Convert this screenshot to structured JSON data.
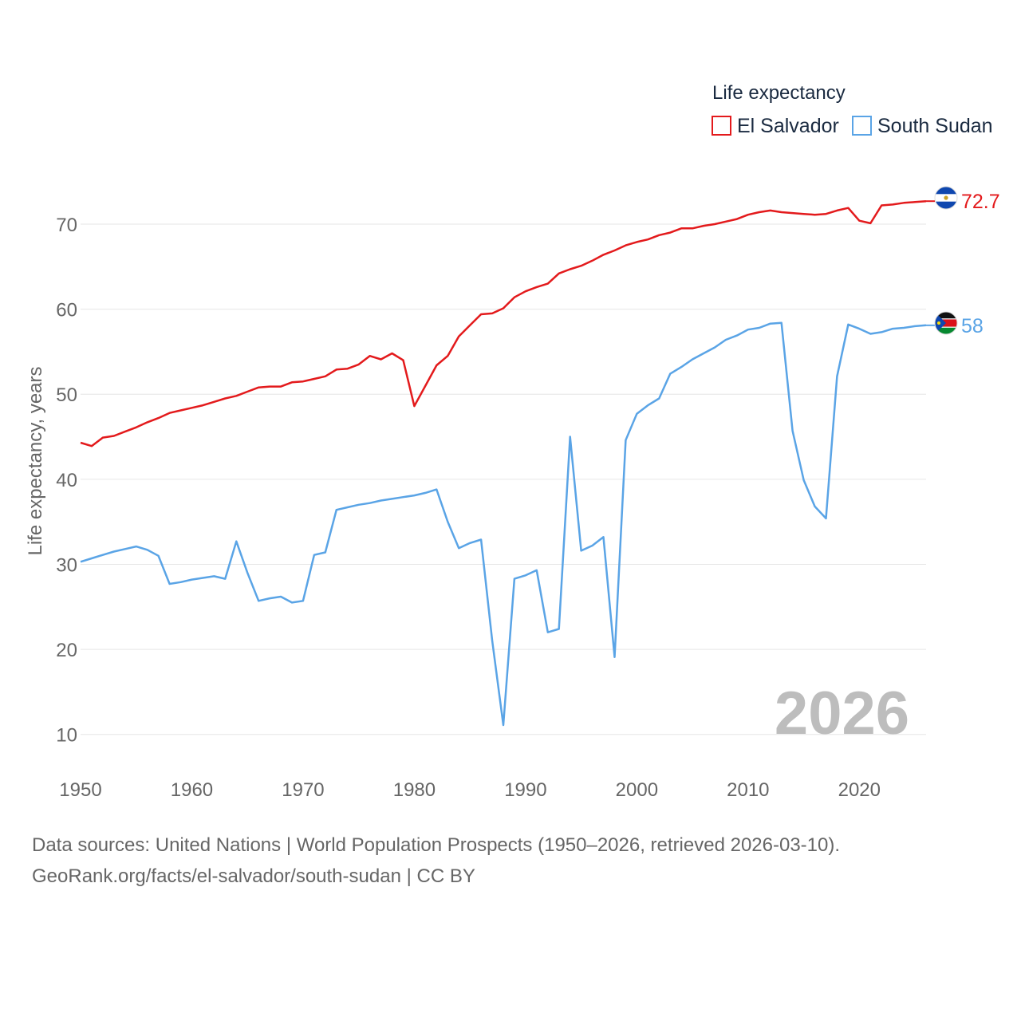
{
  "chart_data": {
    "type": "line",
    "legend_title": "Life expectancy",
    "ylabel": "Life expectancy, years",
    "xlabel": "",
    "x_ticks": [
      1950,
      1960,
      1970,
      1980,
      1990,
      2000,
      2010,
      2020
    ],
    "y_ticks": [
      10,
      20,
      30,
      40,
      50,
      60,
      70
    ],
    "xlim": [
      1950,
      2026
    ],
    "ylim": [
      5,
      76
    ],
    "year_watermark": "2026",
    "legend_position": "top-right",
    "series": [
      {
        "name": "El Salvador",
        "color": "#e31a1c",
        "end_label": "72.7",
        "x": [
          1950,
          1951,
          1952,
          1953,
          1954,
          1955,
          1956,
          1957,
          1958,
          1959,
          1960,
          1961,
          1962,
          1963,
          1964,
          1965,
          1966,
          1967,
          1968,
          1969,
          1970,
          1971,
          1972,
          1973,
          1974,
          1975,
          1976,
          1977,
          1978,
          1979,
          1980,
          1981,
          1982,
          1983,
          1984,
          1985,
          1986,
          1987,
          1988,
          1989,
          1990,
          1991,
          1992,
          1993,
          1994,
          1995,
          1996,
          1997,
          1998,
          1999,
          2000,
          2001,
          2002,
          2003,
          2004,
          2005,
          2006,
          2007,
          2008,
          2009,
          2010,
          2011,
          2012,
          2013,
          2014,
          2015,
          2016,
          2017,
          2018,
          2019,
          2020,
          2021,
          2022,
          2023,
          2024,
          2025,
          2026
        ],
        "values": [
          44.3,
          43.9,
          44.9,
          45.1,
          45.6,
          46.1,
          46.7,
          47.2,
          47.8,
          48.1,
          48.4,
          48.7,
          49.1,
          49.5,
          49.8,
          50.3,
          50.8,
          50.9,
          50.9,
          51.4,
          51.5,
          51.8,
          52.1,
          52.9,
          53.0,
          53.5,
          54.5,
          54.1,
          54.8,
          54.0,
          48.6,
          51.0,
          53.4,
          54.5,
          56.8,
          58.1,
          59.4,
          59.5,
          60.1,
          61.4,
          62.1,
          62.6,
          63.0,
          64.2,
          64.7,
          65.1,
          65.7,
          66.4,
          66.9,
          67.5,
          67.9,
          68.2,
          68.7,
          69.0,
          69.5,
          69.5,
          69.8,
          70.0,
          70.3,
          70.6,
          71.1,
          71.4,
          71.6,
          71.4,
          71.3,
          71.2,
          71.1,
          71.2,
          71.6,
          71.9,
          70.4,
          70.1,
          72.2,
          72.3,
          72.5,
          72.6,
          72.7
        ]
      },
      {
        "name": "South Sudan",
        "color": "#5aa4e6",
        "end_label": "58",
        "x": [
          1950,
          1951,
          1952,
          1953,
          1954,
          1955,
          1956,
          1957,
          1958,
          1959,
          1960,
          1961,
          1962,
          1963,
          1964,
          1965,
          1966,
          1967,
          1968,
          1969,
          1970,
          1971,
          1972,
          1973,
          1974,
          1975,
          1976,
          1977,
          1978,
          1979,
          1980,
          1981,
          1982,
          1983,
          1984,
          1985,
          1986,
          1987,
          1988,
          1989,
          1990,
          1991,
          1992,
          1993,
          1994,
          1995,
          1996,
          1997,
          1998,
          1999,
          2000,
          2001,
          2002,
          2003,
          2004,
          2005,
          2006,
          2007,
          2008,
          2009,
          2010,
          2011,
          2012,
          2013,
          2014,
          2015,
          2016,
          2017,
          2018,
          2019,
          2020,
          2021,
          2022,
          2023,
          2024,
          2025,
          2026
        ],
        "values": [
          30.3,
          30.7,
          31.1,
          31.5,
          31.8,
          32.1,
          31.7,
          31.0,
          27.7,
          27.9,
          28.2,
          28.4,
          28.6,
          28.3,
          32.7,
          29.0,
          25.7,
          26.0,
          26.2,
          25.5,
          25.7,
          31.1,
          31.4,
          36.4,
          36.7,
          37.0,
          37.2,
          37.5,
          37.7,
          37.9,
          38.1,
          38.4,
          38.8,
          35.0,
          31.9,
          32.5,
          32.9,
          21.0,
          11.1,
          28.3,
          28.7,
          29.3,
          22.0,
          22.4,
          45.0,
          31.6,
          32.2,
          33.2,
          19.1,
          44.6,
          47.7,
          48.7,
          49.5,
          52.4,
          53.2,
          54.1,
          54.8,
          55.5,
          56.4,
          56.9,
          57.6,
          57.8,
          58.3,
          58.4,
          45.7,
          39.9,
          36.8,
          35.4,
          52.1,
          58.2,
          57.7,
          57.1,
          57.3,
          57.7,
          57.8,
          58.0,
          58.1
        ]
      }
    ]
  },
  "footer": {
    "line1": "Data sources: United Nations | World Population Prospects (1950–2026, retrieved 2026-03-10).",
    "line2": "GeoRank.org/facts/el-salvador/south-sudan | CC BY"
  }
}
